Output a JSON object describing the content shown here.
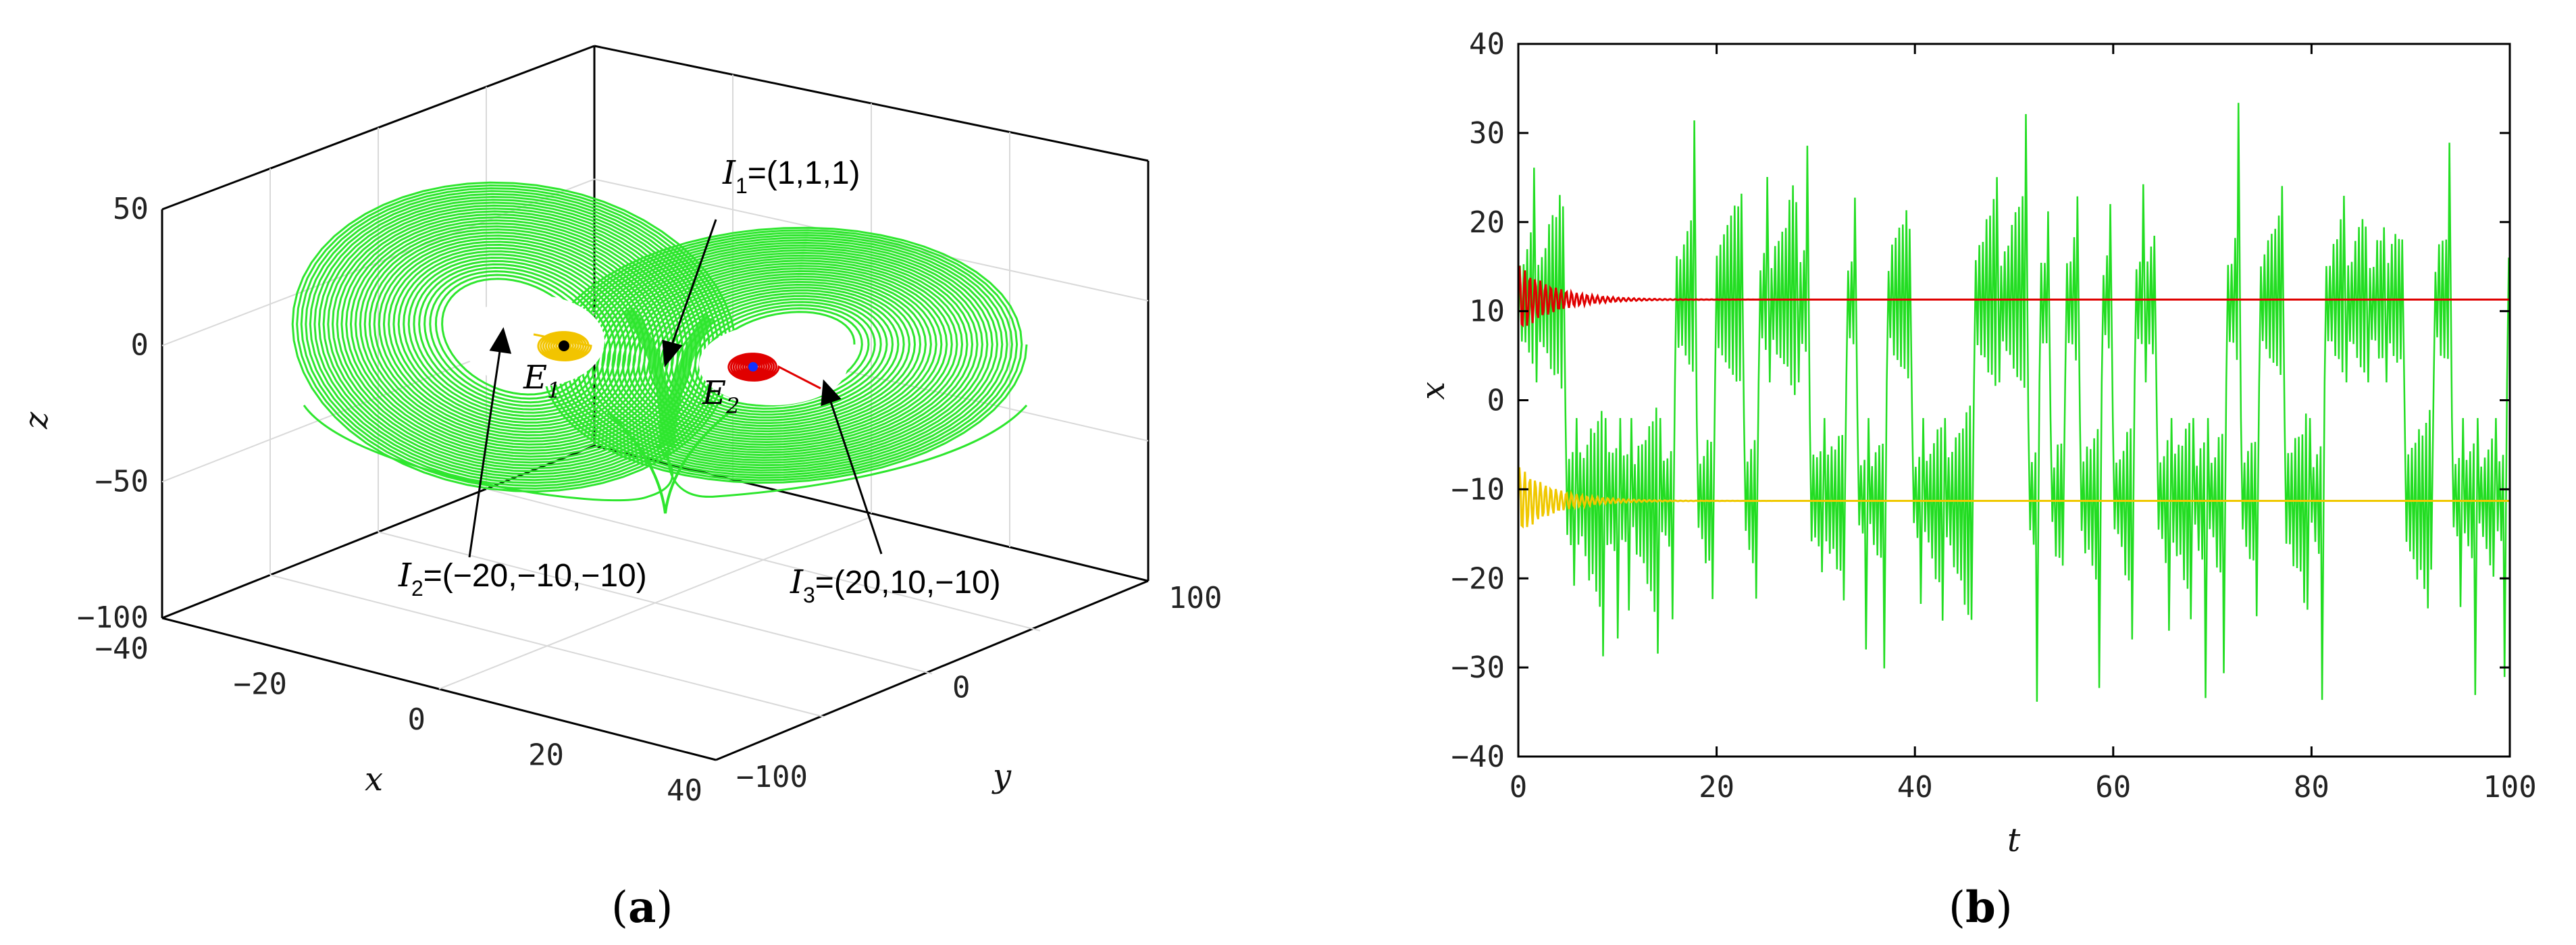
{
  "chart_data": [
    {
      "type": "line",
      "projection": "3d",
      "panel_label": {
        "open": "(",
        "letter": "a",
        "close": ")"
      },
      "xlabel": "x",
      "ylabel": "y",
      "zlabel": "z",
      "xlim": [
        -40,
        40
      ],
      "ylim": [
        -100,
        100
      ],
      "zlim": [
        -100,
        50
      ],
      "x_ticks": [
        "−40",
        "−20",
        "0",
        "20",
        "40"
      ],
      "y_ticks": [
        "−100",
        "0",
        "100"
      ],
      "z_ticks": [
        "50",
        "0",
        "−50",
        "−100"
      ],
      "grid": true,
      "series_colors": {
        "attractor": "#2ee62e",
        "orbit_E1": "#f2c400",
        "orbit_E2": "#e00000"
      },
      "equilibria": [
        {
          "main": "E",
          "sub": "1"
        },
        {
          "main": "E",
          "sub": "2"
        }
      ],
      "annotations": [
        {
          "main": "I",
          "sub": "1",
          "value": "=(1,1,1)"
        },
        {
          "main": "I",
          "sub": "2",
          "value": "=(−20,−10,−10)"
        },
        {
          "main": "I",
          "sub": "3",
          "value": "=(20,10,−10)"
        }
      ]
    },
    {
      "type": "line",
      "panel_label": {
        "open": "(",
        "letter": "b",
        "close": ")"
      },
      "xlabel": "t",
      "ylabel": "x",
      "xlim": [
        0,
        100
      ],
      "ylim": [
        -40,
        40
      ],
      "x_ticks": [
        "0",
        "20",
        "40",
        "60",
        "80",
        "100"
      ],
      "y_ticks": [
        "40",
        "30",
        "20",
        "10",
        "0",
        "−10",
        "−20",
        "−30",
        "−40"
      ],
      "grid": false,
      "series": [
        {
          "color": "#22dd22",
          "behavior": "chaotic",
          "range": [
            -37,
            38
          ]
        },
        {
          "color": "#e00000",
          "steady_value": 11.3,
          "initial_amplitude": 4
        },
        {
          "color": "#f0c800",
          "steady_value": -11.3,
          "initial_amplitude": 4
        }
      ]
    }
  ]
}
